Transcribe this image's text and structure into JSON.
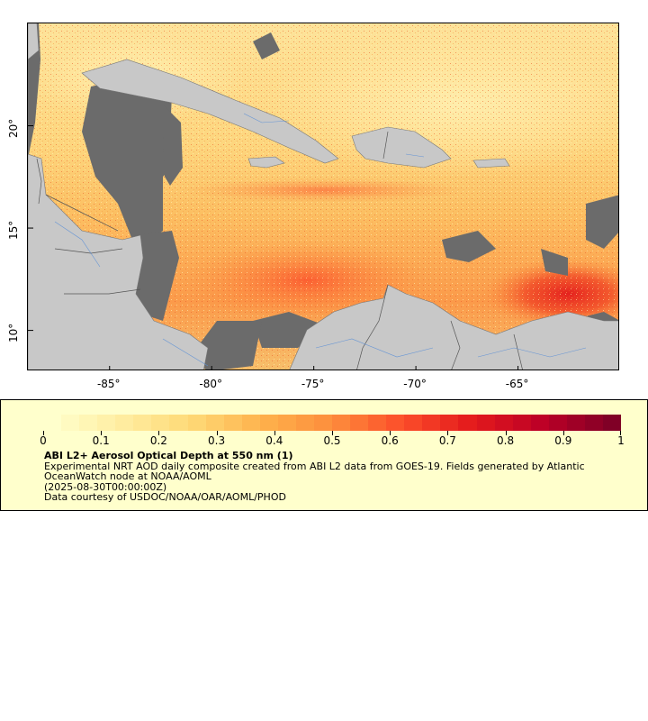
{
  "map": {
    "x_ticks": [
      {
        "label": "-85°",
        "lon": -85
      },
      {
        "label": "-80°",
        "lon": -80
      },
      {
        "label": "-75°",
        "lon": -75
      },
      {
        "label": "-70°",
        "lon": -70
      },
      {
        "label": "-65°",
        "lon": -65
      }
    ],
    "y_ticks": [
      {
        "label": "20°",
        "lat": 20
      },
      {
        "label": "15°",
        "lat": 15
      },
      {
        "label": "10°",
        "lat": 10
      }
    ],
    "lon_range": [
      -89,
      -60
    ],
    "lat_range": [
      8,
      25
    ],
    "colors": {
      "land": "#c8c8c8",
      "no_data": "#6b6b6b",
      "rivers": "#5b8fd6",
      "borders": "#555555",
      "aod_low": "#ffffcc",
      "aod_high": "#800026"
    }
  },
  "legend": {
    "colorbar_min": 0,
    "colorbar_max": 1,
    "colorbar_labels": [
      "0",
      "0.1",
      "0.2",
      "0.3",
      "0.4",
      "0.5",
      "0.6",
      "0.7",
      "0.8",
      "0.9",
      "1"
    ],
    "title": "ABI L2+ Aerosol Optical Depth at 550 nm (1)",
    "line1": "Experimental NRT AOD daily composite created from ABI L2 data from GOES-19. Fields generated by Atlantic",
    "line2": "OceanWatch node at NOAA/AOML",
    "line3": "(2025-08-30T00:00:00Z)",
    "line4": "Data courtesy of USDOC/NOAA/OAR/AOML/PHOD"
  }
}
